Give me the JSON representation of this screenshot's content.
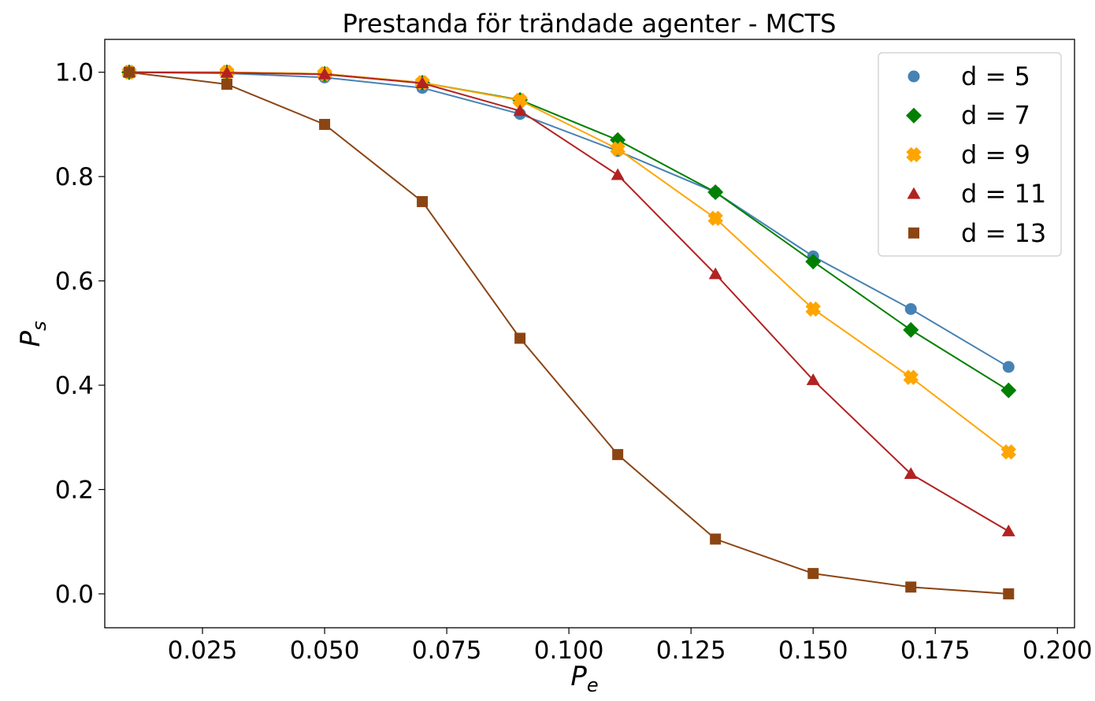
{
  "chart_data": {
    "type": "line",
    "title": "Prestanda för trändade agenter - MCTS",
    "xlabel": {
      "main": "P",
      "sub": "e"
    },
    "ylabel": {
      "main": "P",
      "sub": "s"
    },
    "xlim": [
      0.005,
      0.2035
    ],
    "ylim": [
      -0.065,
      1.063
    ],
    "x_ticks": [
      0.025,
      0.05,
      0.075,
      0.1,
      0.125,
      0.15,
      0.175,
      0.2
    ],
    "x_tick_labels": [
      "0.025",
      "0.050",
      "0.075",
      "0.100",
      "0.125",
      "0.150",
      "0.175",
      "0.200"
    ],
    "y_ticks": [
      0.0,
      0.2,
      0.4,
      0.6,
      0.8,
      1.0
    ],
    "y_tick_labels": [
      "0.0",
      "0.2",
      "0.4",
      "0.6",
      "0.8",
      "1.0"
    ],
    "grid": false,
    "legend_position": "top-right",
    "x": [
      0.01,
      0.03,
      0.05,
      0.07,
      0.09,
      0.11,
      0.13,
      0.15,
      0.17,
      0.19
    ],
    "series": [
      {
        "name": "d = 5",
        "marker": "circle",
        "color": "#4682b4",
        "values": [
          1.0,
          0.998,
          0.99,
          0.97,
          0.92,
          0.849,
          0.77,
          0.647,
          0.546,
          0.435
        ]
      },
      {
        "name": "d = 7",
        "marker": "diamond",
        "color": "#008000",
        "values": [
          1.0,
          1.0,
          0.997,
          0.98,
          0.947,
          0.87,
          0.77,
          0.637,
          0.506,
          0.39
        ]
      },
      {
        "name": "d = 9",
        "marker": "x",
        "color": "#ffa500",
        "values": [
          1.0,
          1.0,
          0.997,
          0.98,
          0.946,
          0.853,
          0.72,
          0.546,
          0.415,
          0.272
        ]
      },
      {
        "name": "d = 11",
        "marker": "triangle",
        "color": "#b22222",
        "values": [
          1.0,
          0.999,
          0.996,
          0.979,
          0.926,
          0.803,
          0.613,
          0.41,
          0.23,
          0.12
        ]
      },
      {
        "name": "d = 13",
        "marker": "square",
        "color": "#8b4513",
        "values": [
          1.0,
          0.977,
          0.9,
          0.752,
          0.49,
          0.267,
          0.105,
          0.039,
          0.013,
          0.0
        ]
      }
    ]
  }
}
